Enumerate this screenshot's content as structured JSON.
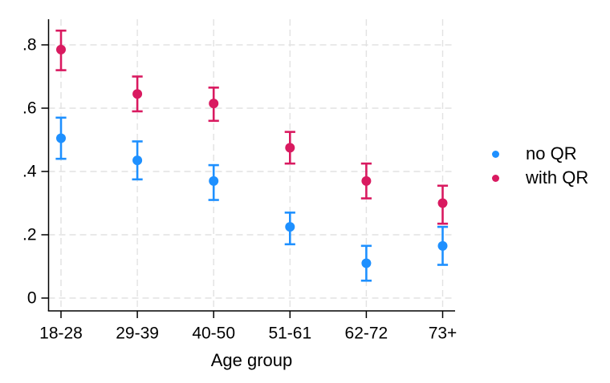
{
  "chart_data": {
    "type": "scatter",
    "subtype": "point-estimates-with-confidence-intervals",
    "title": "",
    "xlabel": "Age group",
    "ylabel": "",
    "categories": [
      "18-28",
      "29-39",
      "40-50",
      "51-61",
      "62-72",
      "73+"
    ],
    "yticks": [
      0,
      0.2,
      0.4,
      0.6,
      0.8
    ],
    "ytick_labels": [
      "0",
      ".2",
      ".4",
      ".6",
      ".8"
    ],
    "ylim": [
      -0.04,
      0.88
    ],
    "grid": "dashed horizontal and vertical",
    "legend_position": "right-outside",
    "series": [
      {
        "name": "no QR",
        "color": "#1e90ff",
        "values": [
          0.505,
          0.435,
          0.37,
          0.225,
          0.11,
          0.165
        ],
        "ci_low": [
          0.44,
          0.375,
          0.31,
          0.17,
          0.055,
          0.105
        ],
        "ci_high": [
          0.57,
          0.495,
          0.42,
          0.27,
          0.165,
          0.225
        ]
      },
      {
        "name": "with QR",
        "color": "#d91a60",
        "values": [
          0.785,
          0.645,
          0.615,
          0.475,
          0.37,
          0.3
        ],
        "ci_low": [
          0.72,
          0.59,
          0.56,
          0.425,
          0.315,
          0.235
        ],
        "ci_high": [
          0.845,
          0.7,
          0.665,
          0.525,
          0.425,
          0.355
        ]
      }
    ]
  }
}
